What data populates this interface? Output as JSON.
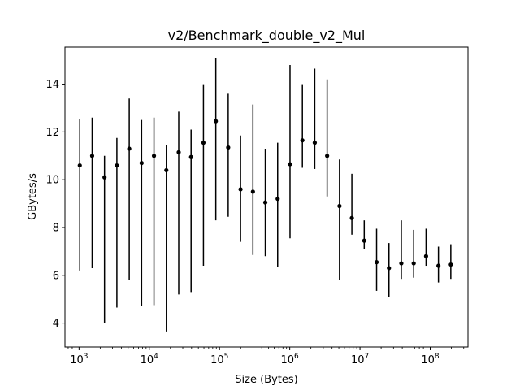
{
  "chart_data": {
    "type": "scatter",
    "title": "v2/Benchmark_double_v2_Mul",
    "xlabel": "Size (Bytes)",
    "ylabel": "GBytes/s",
    "x_scale": "log",
    "xlim": [
      630,
      345000000
    ],
    "ylim": [
      3.0,
      15.55
    ],
    "x_ticks": [
      {
        "value": 1000,
        "base": "10",
        "exp": "3"
      },
      {
        "value": 10000,
        "base": "10",
        "exp": "4"
      },
      {
        "value": 100000,
        "base": "10",
        "exp": "5"
      },
      {
        "value": 1000000,
        "base": "10",
        "exp": "6"
      },
      {
        "value": 10000000,
        "base": "10",
        "exp": "7"
      },
      {
        "value": 100000000,
        "base": "10",
        "exp": "8"
      }
    ],
    "y_ticks": [
      4,
      6,
      8,
      10,
      12,
      14
    ],
    "grid": false,
    "marker_color": "#000000",
    "points": [
      {
        "x": 1024,
        "y": 10.6,
        "lo": 6.2,
        "hi": 12.55
      },
      {
        "x": 1536,
        "y": 11.0,
        "lo": 6.3,
        "hi": 12.6
      },
      {
        "x": 2304,
        "y": 10.1,
        "lo": 4.0,
        "hi": 11.0
      },
      {
        "x": 3456,
        "y": 10.6,
        "lo": 4.65,
        "hi": 11.75
      },
      {
        "x": 5184,
        "y": 11.3,
        "lo": 5.8,
        "hi": 13.4
      },
      {
        "x": 7776,
        "y": 10.7,
        "lo": 4.7,
        "hi": 12.5
      },
      {
        "x": 11664,
        "y": 11.0,
        "lo": 4.75,
        "hi": 12.6
      },
      {
        "x": 17496,
        "y": 10.4,
        "lo": 3.65,
        "hi": 11.45
      },
      {
        "x": 26244,
        "y": 11.15,
        "lo": 5.2,
        "hi": 12.85
      },
      {
        "x": 39366,
        "y": 10.95,
        "lo": 5.3,
        "hi": 12.1
      },
      {
        "x": 59049,
        "y": 11.55,
        "lo": 6.4,
        "hi": 14.0
      },
      {
        "x": 88574,
        "y": 12.45,
        "lo": 8.3,
        "hi": 15.1
      },
      {
        "x": 132861,
        "y": 11.35,
        "lo": 8.45,
        "hi": 13.6
      },
      {
        "x": 199291,
        "y": 9.6,
        "lo": 7.4,
        "hi": 11.85
      },
      {
        "x": 298937,
        "y": 9.5,
        "lo": 6.85,
        "hi": 13.15
      },
      {
        "x": 448405,
        "y": 9.05,
        "lo": 6.8,
        "hi": 11.3
      },
      {
        "x": 672608,
        "y": 9.2,
        "lo": 6.35,
        "hi": 11.55
      },
      {
        "x": 1008912,
        "y": 10.65,
        "lo": 7.55,
        "hi": 14.8
      },
      {
        "x": 1513368,
        "y": 11.65,
        "lo": 10.5,
        "hi": 14.0
      },
      {
        "x": 2270052,
        "y": 11.55,
        "lo": 10.45,
        "hi": 14.65
      },
      {
        "x": 3405078,
        "y": 11.0,
        "lo": 9.3,
        "hi": 14.2
      },
      {
        "x": 5107617,
        "y": 8.9,
        "lo": 5.8,
        "hi": 10.85
      },
      {
        "x": 7661426,
        "y": 8.4,
        "lo": 7.7,
        "hi": 10.25
      },
      {
        "x": 11492139,
        "y": 7.45,
        "lo": 7.1,
        "hi": 8.3
      },
      {
        "x": 17238209,
        "y": 6.55,
        "lo": 5.35,
        "hi": 7.95
      },
      {
        "x": 25857313,
        "y": 6.3,
        "lo": 5.1,
        "hi": 7.35
      },
      {
        "x": 38785970,
        "y": 6.5,
        "lo": 5.85,
        "hi": 8.3
      },
      {
        "x": 58178955,
        "y": 6.5,
        "lo": 5.9,
        "hi": 7.9
      },
      {
        "x": 87268433,
        "y": 6.8,
        "lo": 6.4,
        "hi": 7.95
      },
      {
        "x": 130902649,
        "y": 6.4,
        "lo": 5.7,
        "hi": 7.2
      },
      {
        "x": 196353974,
        "y": 6.45,
        "lo": 5.85,
        "hi": 7.3
      }
    ]
  }
}
